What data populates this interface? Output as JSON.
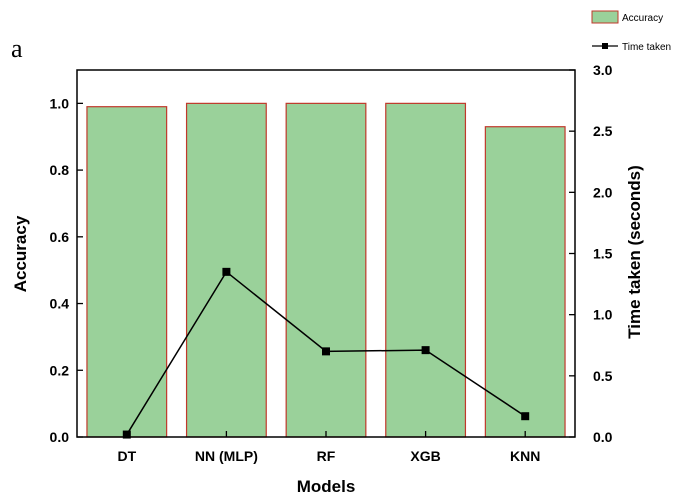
{
  "panel_label": "a",
  "colors": {
    "bar_fill": "#9ad19a",
    "bar_edge": "#c0392b",
    "line": "#000000",
    "marker": "#000000"
  },
  "chart_data": {
    "type": "bar",
    "categories": [
      "DT",
      "NN (MLP)",
      "RF",
      "XGB",
      "KNN"
    ],
    "xlabel": "Models",
    "ylabel": "Accuracy",
    "y2label": "Time taken (seconds)",
    "ylim": [
      0,
      1.1
    ],
    "y2lim": [
      0,
      3.0
    ],
    "yticks": [
      "0.0",
      "0.2",
      "0.4",
      "0.6",
      "0.8",
      "1.0"
    ],
    "y2ticks": [
      "0.0",
      "0.5",
      "1.0",
      "1.5",
      "2.0",
      "2.5",
      "3.0"
    ],
    "grid": false,
    "legend_position": "top-right",
    "series": [
      {
        "name": "Accuracy",
        "type": "bar",
        "axis": "left",
        "values": [
          0.99,
          1.0,
          1.0,
          1.0,
          0.93
        ]
      },
      {
        "name": "Time taken",
        "type": "line",
        "axis": "right",
        "marker": "square",
        "values": [
          0.02,
          1.35,
          0.7,
          0.71,
          0.17
        ]
      }
    ]
  }
}
